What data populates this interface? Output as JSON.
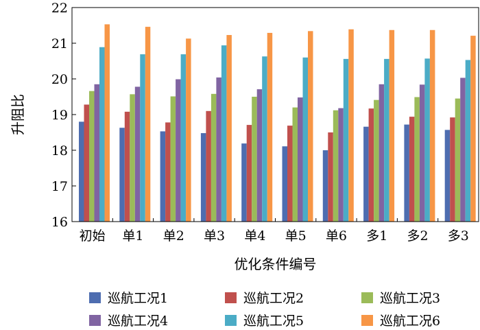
{
  "chart_data": {
    "type": "bar",
    "title": "",
    "xlabel": "优化条件编号",
    "ylabel": "升阻比",
    "ylim": [
      16,
      22
    ],
    "yticks": [
      16,
      17,
      18,
      19,
      20,
      21,
      22
    ],
    "categories": [
      "初始",
      "单1",
      "单2",
      "单3",
      "单4",
      "单5",
      "单6",
      "多1",
      "多2",
      "多3"
    ],
    "series": [
      {
        "name": "巡航工况1",
        "color": "#4e6db0",
        "values": [
          18.8,
          18.63,
          18.53,
          18.48,
          18.19,
          18.11,
          18.0,
          18.66,
          18.72,
          18.57
        ]
      },
      {
        "name": "巡航工况2",
        "color": "#c0504d",
        "values": [
          19.28,
          19.08,
          18.78,
          19.1,
          18.71,
          18.69,
          18.5,
          19.17,
          18.94,
          18.92
        ]
      },
      {
        "name": "巡航工况3",
        "color": "#9bbb59",
        "values": [
          19.66,
          19.57,
          19.51,
          19.58,
          19.5,
          19.2,
          19.12,
          19.41,
          19.49,
          19.45
        ]
      },
      {
        "name": "巡航工况4",
        "color": "#8064a2",
        "values": [
          19.85,
          19.78,
          19.99,
          20.04,
          19.71,
          19.48,
          19.18,
          19.85,
          19.84,
          20.03
        ]
      },
      {
        "name": "巡航工况5",
        "color": "#4bacc6",
        "values": [
          20.89,
          20.69,
          20.69,
          20.94,
          20.63,
          20.6,
          20.56,
          20.56,
          20.57,
          20.53
        ]
      },
      {
        "name": "巡航工况6",
        "color": "#f79646",
        "values": [
          21.53,
          21.46,
          21.13,
          21.23,
          21.29,
          21.34,
          21.39,
          21.37,
          21.37,
          21.21
        ]
      }
    ],
    "legend_position": "bottom",
    "grid": false
  }
}
